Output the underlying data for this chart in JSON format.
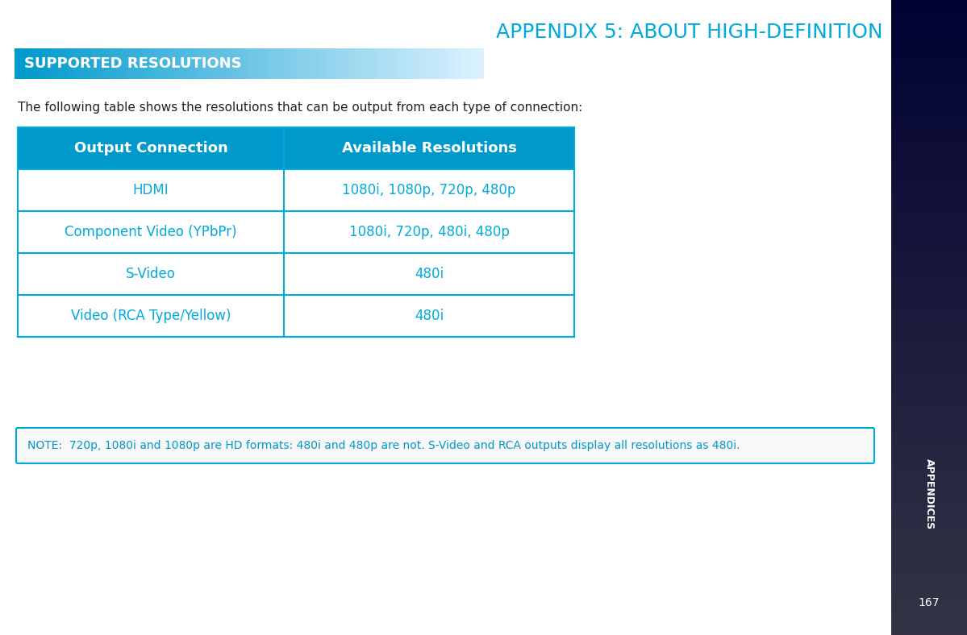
{
  "title": "APPENDIX 5: ABOUT HIGH-DEFINITION",
  "title_color": "#00aadd",
  "title_fontsize": 18,
  "section_header": "SUPPORTED RESOLUTIONS",
  "section_header_color": "#ffffff",
  "section_header_fontsize": 13,
  "section_bg_color_left": "#0099cc",
  "section_bg_color_right": "#aaddee",
  "intro_text": "The following table shows the resolutions that can be output from each type of connection:",
  "intro_fontsize": 11,
  "table_header": [
    "Output Connection",
    "Available Resolutions"
  ],
  "table_header_bg": "#0099cc",
  "table_header_color": "#ffffff",
  "table_header_fontsize": 13,
  "table_rows": [
    [
      "HDMI",
      "1080i, 1080p, 720p, 480p"
    ],
    [
      "Component Video (YPbPr)",
      "1080i, 720p, 480i, 480p"
    ],
    [
      "S-Video",
      "480i"
    ],
    [
      "Video (RCA Type/Yellow)",
      "480i"
    ]
  ],
  "table_row_color": "#00aadd",
  "table_row_fontsize": 12,
  "table_border_color": "#00aadd",
  "table_bg_color": "#ffffff",
  "note_text": "NOTE:  720p, 1080i and 1080p are HD formats: 480i and 480p are not. S-Video and RCA outputs display all resolutions as 480i.",
  "note_color": "#0099cc",
  "note_fontsize": 10,
  "note_border_color": "#00aadd",
  "sidebar_color_top": "#333344",
  "sidebar_color_bottom": "#001133",
  "sidebar_text": "APPENDICES",
  "sidebar_page": "167",
  "page_number": "167",
  "bg_color": "#ffffff"
}
